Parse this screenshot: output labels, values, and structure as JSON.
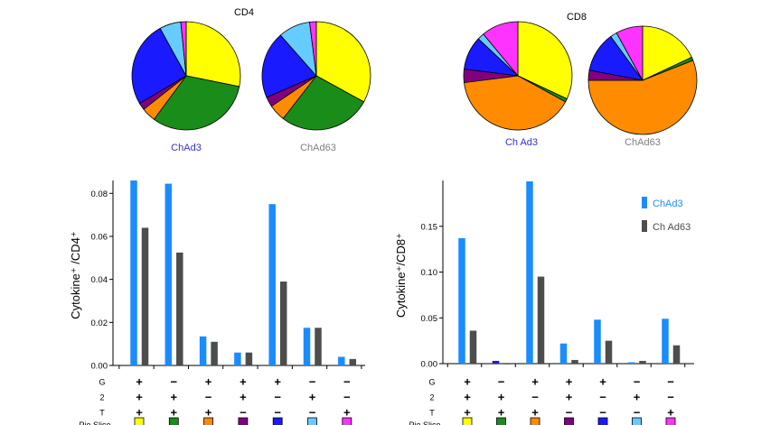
{
  "colors": {
    "chad3": "#1a8cff",
    "chad63": "#4d4d4d",
    "chad3_label": "#3333cc",
    "chad63_label": "#808080",
    "slice": [
      "#ffff00",
      "#1a8c1a",
      "#ff8c00",
      "#800080",
      "#1a1aff",
      "#66ccff",
      "#ff33ff"
    ]
  },
  "row_labels": [
    "G",
    "2",
    "T"
  ],
  "pie_slice_label": "Pie Slice",
  "chart_data": [
    {
      "type": "pie",
      "title": "CD4",
      "pies": [
        {
          "name": "ChAd3",
          "values": [
            26.5,
            30.0,
            4.0,
            2.0,
            24.0,
            6.0,
            1.5
          ]
        },
        {
          "name": "ChAd63",
          "values": [
            33.0,
            27.5,
            5.0,
            3.0,
            20.0,
            9.5,
            2.0
          ]
        }
      ]
    },
    {
      "type": "pie",
      "title": "CD8",
      "pies": [
        {
          "name": "ChAd3",
          "values": [
            32.0,
            1.0,
            40.0,
            4.0,
            10.0,
            2.0,
            11.0
          ]
        },
        {
          "name": "ChAd63",
          "values": [
            18.0,
            1.0,
            56.0,
            3.0,
            12.0,
            2.0,
            8.0
          ]
        }
      ]
    },
    {
      "type": "bar",
      "ylabel": "Cytokine⁺ /CD4⁺",
      "ylim": [
        0,
        0.086
      ],
      "yticks": [
        "0.00",
        "0.02",
        "0.04",
        "0.06",
        "0.08"
      ],
      "ytick_values": [
        0,
        0.02,
        0.04,
        0.06,
        0.08
      ],
      "combos": [
        [
          "+",
          "+",
          "+"
        ],
        [
          "−",
          "+",
          "+"
        ],
        [
          "+",
          "−",
          "+"
        ],
        [
          "+",
          "+",
          "−"
        ],
        [
          "+",
          "−",
          "−"
        ],
        [
          "−",
          "+",
          "−"
        ],
        [
          "−",
          "−",
          "+"
        ]
      ],
      "series": [
        {
          "name": "ChAd3",
          "values": [
            0.086,
            0.0845,
            0.0135,
            0.006,
            0.075,
            0.0175,
            0.004
          ]
        },
        {
          "name": "ChAd63",
          "values": [
            0.064,
            0.0525,
            0.011,
            0.006,
            0.039,
            0.0175,
            0.003
          ]
        }
      ]
    },
    {
      "type": "bar",
      "ylabel": "Cytokine⁺/CD8⁺",
      "ylim": [
        0,
        0.2
      ],
      "yticks": [
        "0.00",
        "0.05",
        "0.10",
        "0.15"
      ],
      "ytick_values": [
        0,
        0.05,
        0.1,
        0.15
      ],
      "combos": [
        [
          "+",
          "+",
          "+"
        ],
        [
          "−",
          "+",
          "+"
        ],
        [
          "+",
          "−",
          "+"
        ],
        [
          "+",
          "+",
          "−"
        ],
        [
          "+",
          "−",
          "−"
        ],
        [
          "−",
          "+",
          "−"
        ],
        [
          "−",
          "−",
          "+"
        ]
      ],
      "legend": [
        "ChAd3",
        "Ch Ad63"
      ],
      "legend_position": "top-right",
      "series": [
        {
          "name": "ChAd3",
          "values": [
            0.137,
            0.003,
            0.199,
            0.022,
            0.048,
            0.0015,
            0.049
          ]
        },
        {
          "name": "ChAd63",
          "values": [
            0.036,
            0.0,
            0.095,
            0.004,
            0.025,
            0.003,
            0.02
          ]
        }
      ]
    }
  ],
  "pie_labels": {
    "left": [
      "ChAd3",
      "ChAd63"
    ],
    "right": [
      "Ch Ad3",
      "ChAd63"
    ]
  }
}
